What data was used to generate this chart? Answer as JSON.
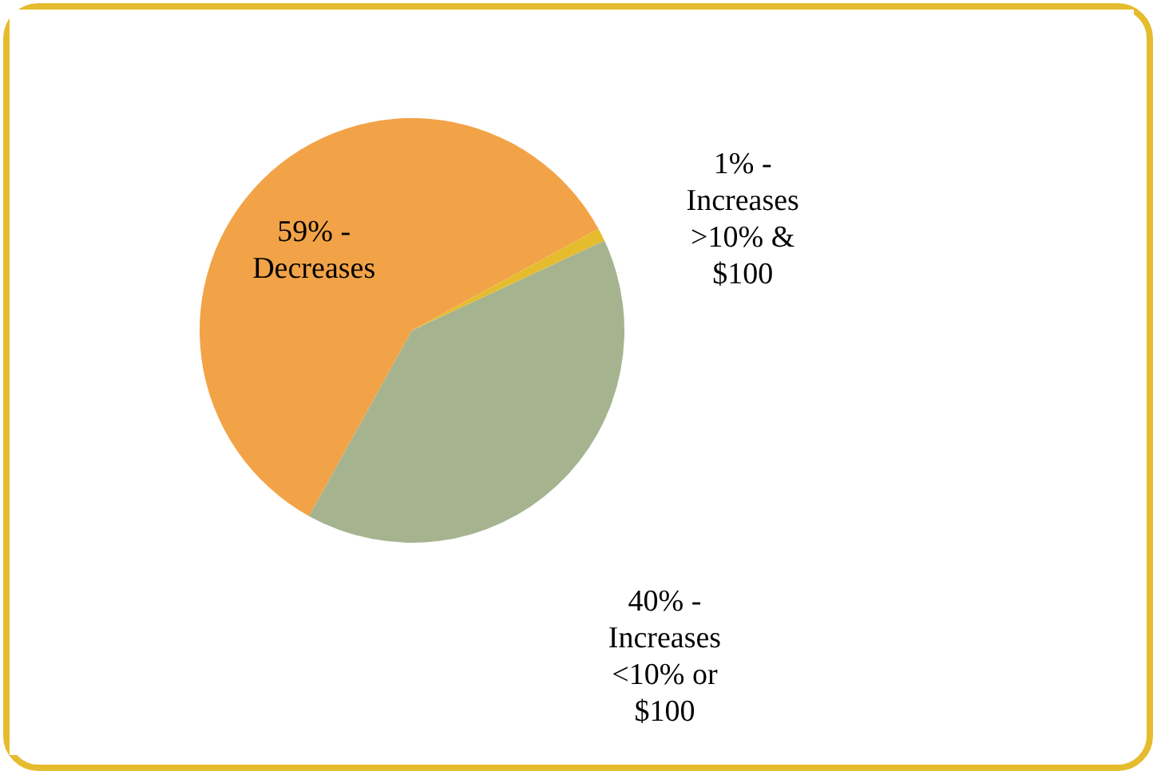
{
  "chart_data": {
    "type": "pie",
    "categories": [
      "59% - Decreases",
      "1% - Increases >10% & $100",
      "40% - Increases <10% or $100"
    ],
    "values": [
      59,
      1,
      40
    ],
    "colors": [
      "#f2a347",
      "#e6bc2f",
      "#a5b48f"
    ]
  }
}
